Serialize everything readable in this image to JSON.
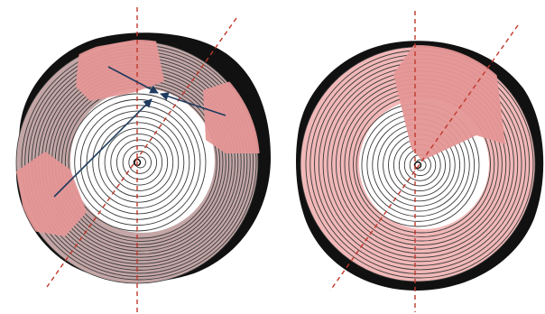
{
  "figure": {
    "panels": [
      {
        "id": "left",
        "bark_color": "#111111",
        "heartwood_color": "#c4a6a6",
        "sapwood_color": "#ffffff",
        "ring_color": "#3a3a3a",
        "sector_color": "#e59696",
        "arrow_color": "#1f3a5f",
        "axis_color": "#c0392b",
        "rings_outer": 14,
        "rings_inner": 12
      },
      {
        "id": "right",
        "bark_color": "#111111",
        "heartwood_color": "#f2b8b8",
        "sapwood_color": "#ffffff",
        "ring_color": "#3a3a3a",
        "sector_color": "#e59696",
        "axis_color": "#c0392b",
        "rings_outer": 12,
        "rings_inner": 12
      }
    ]
  }
}
